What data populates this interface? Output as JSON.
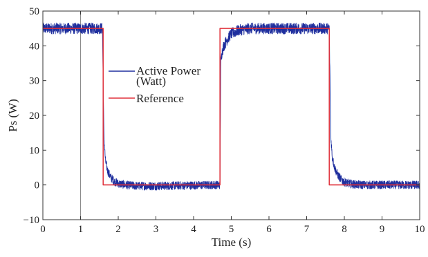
{
  "chart_data": {
    "type": "line",
    "title": "",
    "xlabel": "Time (s)",
    "ylabel": "Ps (W)",
    "xlim": [
      0,
      10
    ],
    "ylim": [
      -10,
      50
    ],
    "x_ticks": [
      "0",
      "1",
      "2",
      "3",
      "4",
      "5",
      "6",
      "7",
      "8",
      "9",
      "10"
    ],
    "y_ticks": [
      "−10",
      "0",
      "10",
      "20",
      "30",
      "40",
      "50"
    ],
    "grid": false,
    "legend_position": "left",
    "vertical_marker_x": 1,
    "series": [
      {
        "name": "Active Power",
        "name_line2": "(Watt)",
        "color": "#1f2f9e",
        "style": "noisy",
        "x": [
          0,
          1.58,
          1.62,
          1.66,
          1.72,
          1.8,
          1.9,
          2.0,
          2.2,
          2.5,
          3.0,
          3.5,
          4.0,
          4.5,
          4.7,
          4.72,
          4.75,
          4.8,
          4.9,
          5.0,
          5.2,
          5.5,
          6.0,
          6.5,
          7.0,
          7.6,
          7.64,
          7.68,
          7.74,
          7.82,
          7.92,
          8.0,
          8.2,
          8.5,
          9.0,
          9.5,
          10.0
        ],
        "y": [
          45,
          45,
          14,
          7,
          4,
          2.2,
          1,
          0.4,
          0,
          -0.3,
          -0.3,
          -0.2,
          -0.1,
          0,
          0,
          35,
          38,
          40,
          42,
          43.5,
          44.5,
          45,
          45,
          45,
          45,
          45,
          14,
          8,
          5,
          3,
          1.5,
          0.8,
          0.2,
          0,
          0,
          0,
          0
        ]
      },
      {
        "name": "Reference",
        "color": "#e0303a",
        "style": "step",
        "x": [
          0,
          1.6,
          1.6,
          4.7,
          4.7,
          7.6,
          7.6,
          10
        ],
        "y": [
          45,
          45,
          0,
          0,
          45,
          45,
          0,
          0
        ]
      }
    ]
  }
}
